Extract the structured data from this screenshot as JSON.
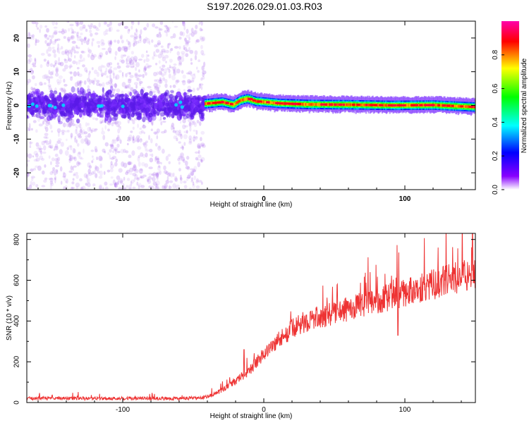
{
  "title": "S197.2026.029.01.03.R03",
  "chart_data": [
    {
      "type": "heatmap",
      "xlabel": "Height of straight line (km)",
      "ylabel": "Frequency (Hz)",
      "xlim": [
        -168,
        150
      ],
      "ylim": [
        -25,
        25
      ],
      "xticks": [
        -100,
        0,
        100
      ],
      "yticks": [
        -20,
        -10,
        0,
        10,
        20
      ],
      "colorbar": {
        "label": "Normalized spectral amplitude",
        "range": [
          0,
          1
        ],
        "ticks": [
          "0.0",
          "0.2",
          "0.4",
          "0.6",
          "0.8"
        ],
        "tick_values": [
          0.0,
          0.2,
          0.4,
          0.6,
          0.8
        ],
        "colors": [
          "#ffffff",
          "#8800ff",
          "#0000ff",
          "#00ffff",
          "#00ff00",
          "#ffff00",
          "#ff0000",
          "#ff00aa"
        ]
      },
      "noise_region_end_km": -42,
      "ridge": [
        {
          "x": -42,
          "y": 0.5
        },
        {
          "x": -30,
          "y": 1.0
        },
        {
          "x": -22,
          "y": 0.2
        },
        {
          "x": -17,
          "y": 1.5
        },
        {
          "x": -12,
          "y": 2.0
        },
        {
          "x": -6,
          "y": 1.2
        },
        {
          "x": 0,
          "y": 1.0
        },
        {
          "x": 10,
          "y": 0.6
        },
        {
          "x": 30,
          "y": 0.3
        },
        {
          "x": 60,
          "y": 0.2
        },
        {
          "x": 90,
          "y": 0.0
        },
        {
          "x": 120,
          "y": 0.1
        },
        {
          "x": 150,
          "y": -0.5
        }
      ]
    },
    {
      "type": "line",
      "xlabel": "Height of straight line (km)",
      "ylabel": "SNR (10 * v/v)",
      "xlim": [
        -168,
        150
      ],
      "ylim": [
        0,
        830
      ],
      "xticks": [
        -100,
        0,
        100
      ],
      "yticks": [
        0,
        200,
        400,
        600,
        800
      ],
      "line_color": "#ee3333",
      "series": [
        {
          "name": "SNR",
          "x": [
            -168,
            -140,
            -110,
            -80,
            -60,
            -45,
            -35,
            -25,
            -15,
            -10,
            -5,
            0,
            5,
            10,
            20,
            30,
            40,
            50,
            60,
            70,
            80,
            90,
            100,
            110,
            120,
            130,
            140,
            150
          ],
          "y": [
            20,
            20,
            20,
            20,
            20,
            22,
            40,
            80,
            130,
            160,
            200,
            240,
            270,
            305,
            360,
            400,
            420,
            440,
            460,
            480,
            500,
            520,
            540,
            560,
            580,
            600,
            620,
            640
          ]
        }
      ],
      "spikes": [
        {
          "x": -14,
          "y": 260
        },
        {
          "x": 95,
          "y": 330
        },
        {
          "x": 148,
          "y": 830
        }
      ]
    }
  ]
}
